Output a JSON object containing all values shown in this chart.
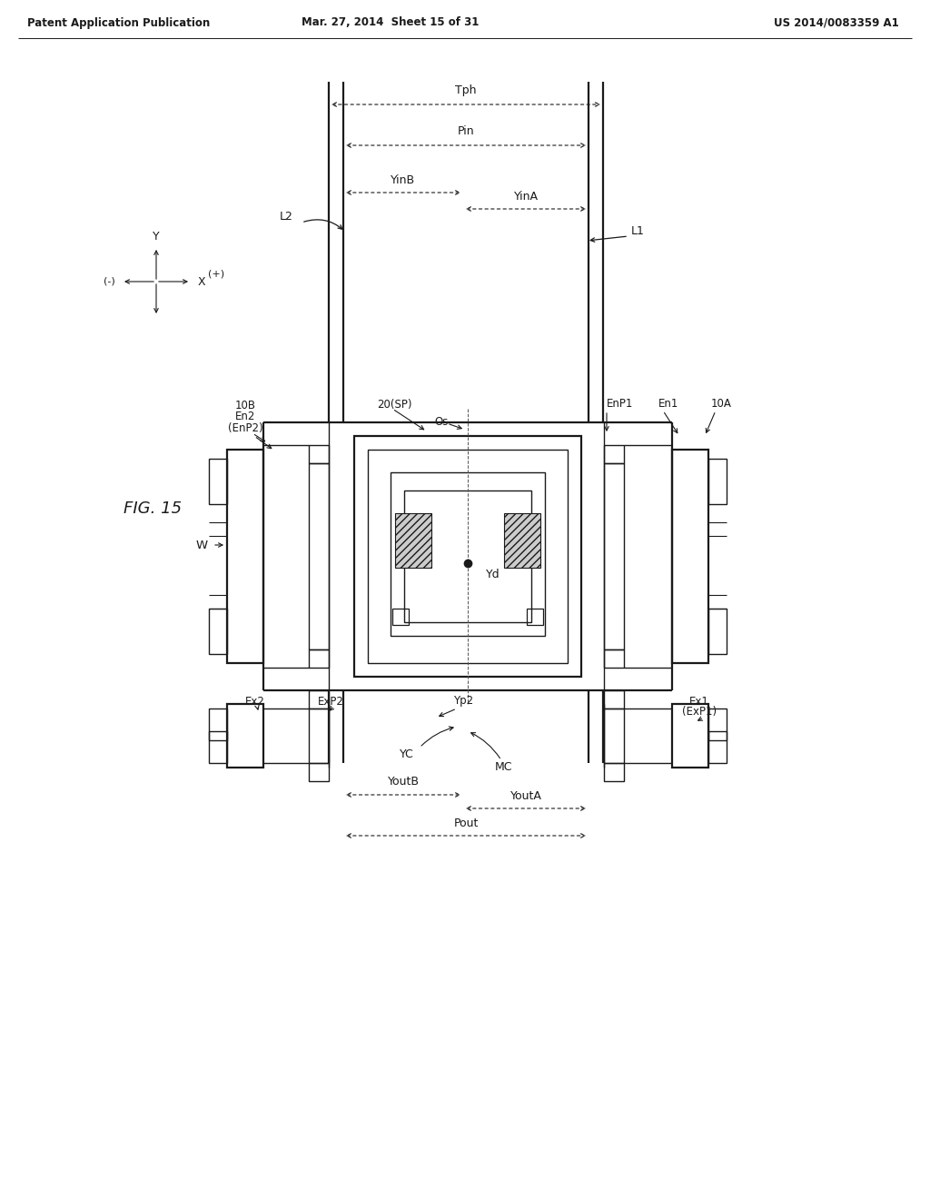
{
  "bg_color": "#ffffff",
  "text_color": "#1a1a1a",
  "header_left": "Patent Application Publication",
  "header_mid": "Mar. 27, 2014  Sheet 15 of 31",
  "header_right": "US 2014/0083359 A1",
  "fig_label": "FIG. 15"
}
